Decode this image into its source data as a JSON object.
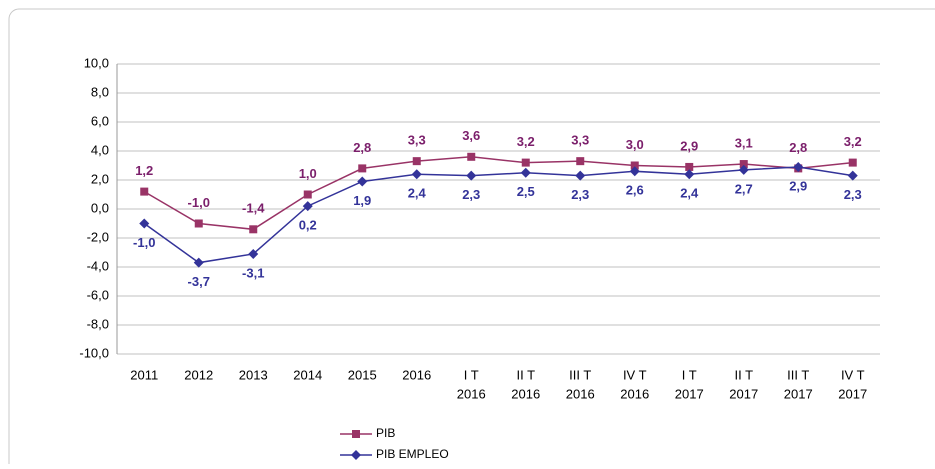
{
  "chart_data": {
    "type": "line",
    "categories": [
      [
        "2011"
      ],
      [
        "2012"
      ],
      [
        "2013"
      ],
      [
        "2014"
      ],
      [
        "2015"
      ],
      [
        "2016"
      ],
      [
        "I T",
        "2016"
      ],
      [
        "II T",
        "2016"
      ],
      [
        "III T",
        "2016"
      ],
      [
        "IV T",
        "2016"
      ],
      [
        "I T",
        "2017"
      ],
      [
        "II T",
        "2017"
      ],
      [
        "III T",
        "2017"
      ],
      [
        "IV T",
        "2017"
      ]
    ],
    "series": [
      {
        "name": "PIB",
        "color": "#993366",
        "marker": "square",
        "label_color": "#7b1f6b",
        "label_position": "above",
        "values": [
          1.2,
          -1.0,
          -1.4,
          1.0,
          2.8,
          3.3,
          3.6,
          3.2,
          3.3,
          3.0,
          2.9,
          3.1,
          2.8,
          3.2
        ],
        "value_labels": [
          "1,2",
          "-1,0",
          "-1,4",
          "1,0",
          "2,8",
          "3,3",
          "3,6",
          "3,2",
          "3,3",
          "3,0",
          "2,9",
          "3,1",
          "2,8",
          "3,2"
        ]
      },
      {
        "name": "PIB EMPLEO",
        "color": "#333399",
        "marker": "diamond",
        "label_color": "#333399",
        "label_position": "below",
        "values": [
          -1.0,
          -3.7,
          -3.1,
          0.2,
          1.9,
          2.4,
          2.3,
          2.5,
          2.3,
          2.6,
          2.4,
          2.7,
          2.9,
          2.3
        ],
        "value_labels": [
          "-1,0",
          "-3,7",
          "-3,1",
          "0,2",
          "1,9",
          "2,4",
          "2,3",
          "2,5",
          "2,3",
          "2,6",
          "2,4",
          "2,7",
          "2,9",
          "2,3"
        ]
      }
    ],
    "ylim": [
      -10,
      10
    ],
    "yticks": [
      {
        "value": -10,
        "label": "-10,0"
      },
      {
        "value": -8,
        "label": "-8,0"
      },
      {
        "value": -6,
        "label": "-6,0"
      },
      {
        "value": -4,
        "label": "-4,0"
      },
      {
        "value": -2,
        "label": "-2,0"
      },
      {
        "value": 0,
        "label": "0,0"
      },
      {
        "value": 2,
        "label": "2,0"
      },
      {
        "value": 4,
        "label": "4,0"
      },
      {
        "value": 6,
        "label": "6,0"
      },
      {
        "value": 8,
        "label": "8,0"
      },
      {
        "value": 10,
        "label": "10,0"
      }
    ],
    "grid": true,
    "legend": "bottom"
  }
}
